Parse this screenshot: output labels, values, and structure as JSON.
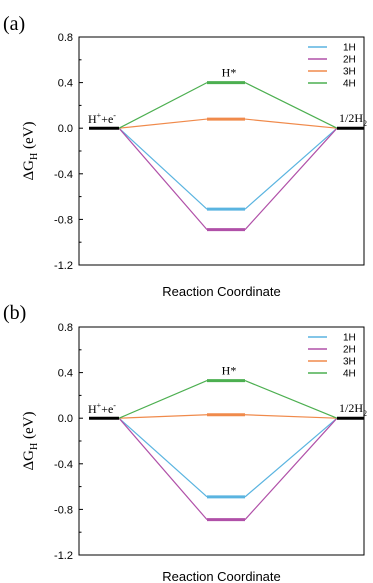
{
  "chart_data": [
    {
      "panel_label": "(a)",
      "type": "line",
      "xlabel": "Reaction Coordinate",
      "ylabel_main": "ΔG",
      "ylabel_sub": "H",
      "ylabel_unit": "(eV)",
      "ylim": [
        -1.2,
        0.8
      ],
      "yticks": [
        "0.8",
        "0.4",
        "0.0",
        "-0.4",
        "-0.8",
        "-1.2"
      ],
      "ytick_values": [
        0.8,
        0.4,
        0.0,
        -0.4,
        -0.8,
        -1.2
      ],
      "grid": false,
      "legend_position": "top-right",
      "annotations": {
        "left_main": "H",
        "left_sup1": "+",
        "left_mid": "+e",
        "left_sup2": "-",
        "middle": "H*",
        "right_main": "1/2H",
        "right_sub": "2"
      },
      "state_values_shared": [
        0.0,
        0.0
      ],
      "series": [
        {
          "name": "1H",
          "color": "#5ab4e0",
          "values": [
            0.0,
            -0.71,
            0.0
          ]
        },
        {
          "name": "2H",
          "color": "#b050a8",
          "values": [
            0.0,
            -0.89,
            0.0
          ]
        },
        {
          "name": "3H",
          "color": "#f08a4b",
          "values": [
            0.0,
            0.08,
            0.0
          ]
        },
        {
          "name": "4H",
          "color": "#4caf50",
          "values": [
            0.0,
            0.4,
            0.0
          ]
        }
      ]
    },
    {
      "panel_label": "(b)",
      "type": "line",
      "xlabel": "Reaction Coordinate",
      "ylabel_main": "ΔG",
      "ylabel_sub": "H",
      "ylabel_unit": "(eV)",
      "ylim": [
        -1.2,
        0.8
      ],
      "yticks": [
        "0.8",
        "0.4",
        "0.0",
        "-0.4",
        "-0.8",
        "-1.2"
      ],
      "ytick_values": [
        0.8,
        0.4,
        0.0,
        -0.4,
        -0.8,
        -1.2
      ],
      "grid": false,
      "legend_position": "top-right",
      "annotations": {
        "left_main": "H",
        "left_sup1": "+",
        "left_mid": "+e",
        "left_sup2": "-",
        "middle": "H*",
        "right_main": "1/2H",
        "right_sub": "2"
      },
      "state_values_shared": [
        0.0,
        0.0
      ],
      "series": [
        {
          "name": "1H",
          "color": "#5ab4e0",
          "values": [
            0.0,
            -0.69,
            0.0
          ]
        },
        {
          "name": "2H",
          "color": "#b050a8",
          "values": [
            0.0,
            -0.89,
            0.0
          ]
        },
        {
          "name": "3H",
          "color": "#f08a4b",
          "values": [
            0.0,
            0.03,
            0.0
          ]
        },
        {
          "name": "4H",
          "color": "#4caf50",
          "values": [
            0.0,
            0.33,
            0.0
          ]
        }
      ]
    }
  ]
}
